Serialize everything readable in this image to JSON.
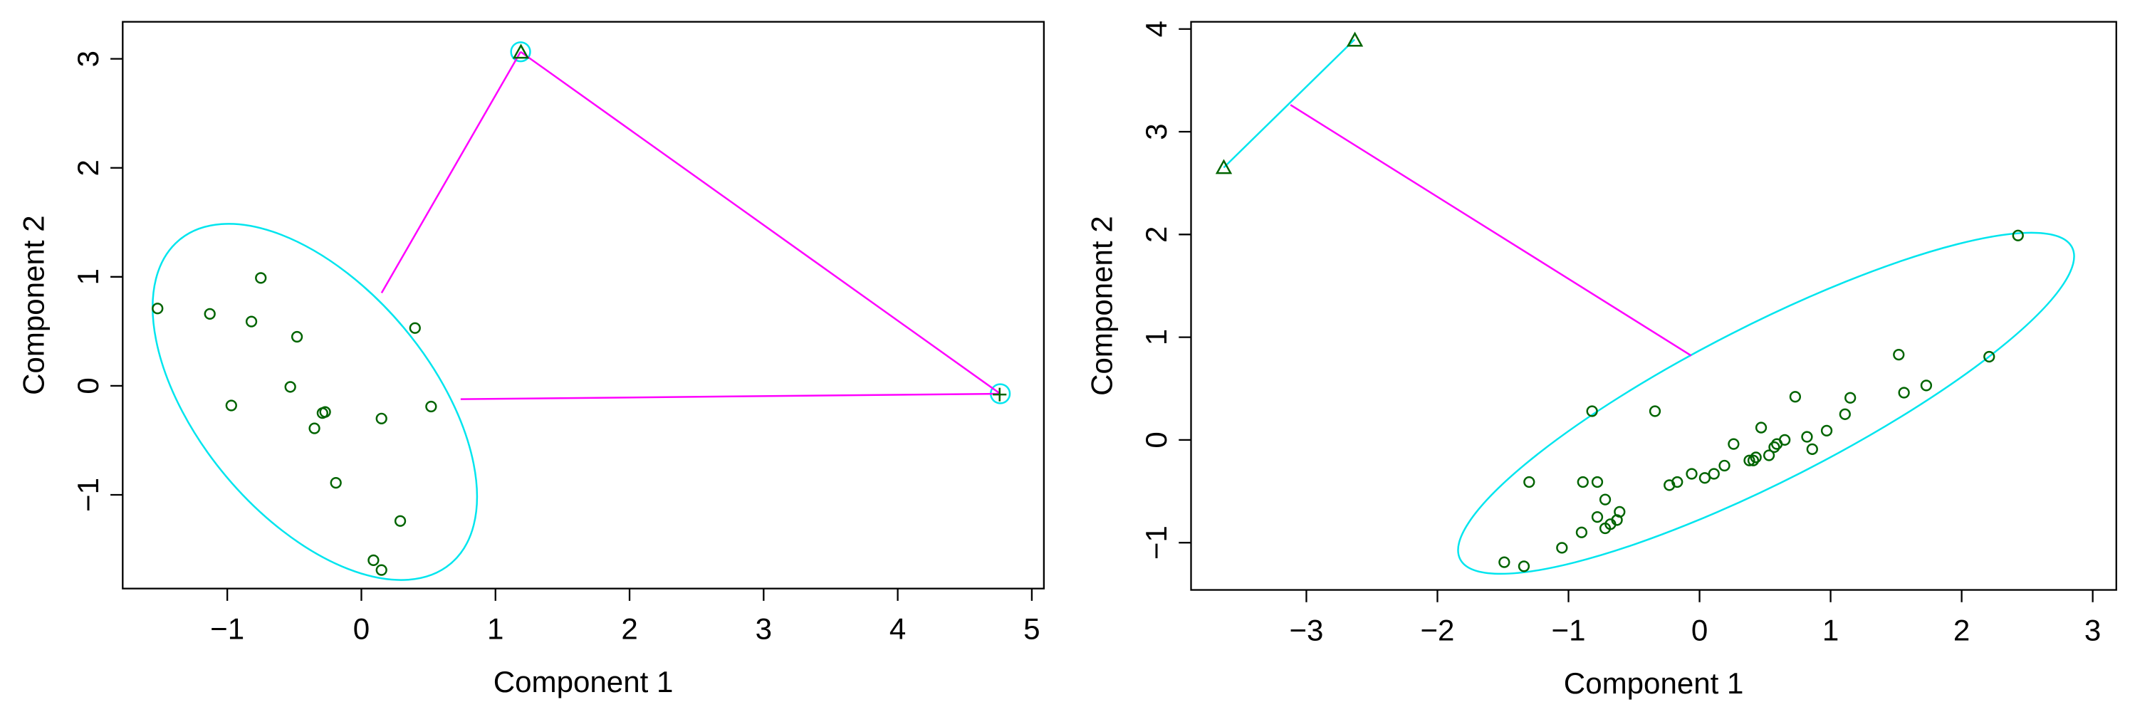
{
  "chart_data": [
    {
      "type": "scatter",
      "xlabel": "Component 1",
      "ylabel": "Component 2",
      "xlim": [
        -1.78,
        5.09
      ],
      "ylim": [
        -1.86,
        3.34
      ],
      "xticks": [
        {
          "value": -1,
          "label": "−1"
        },
        0,
        1,
        2,
        3,
        4,
        5
      ],
      "yticks": [
        {
          "value": -1,
          "label": "−1"
        },
        0,
        1,
        2,
        3
      ],
      "series": [
        {
          "marker": "circle",
          "color": "#006400",
          "x": [
            -1.52,
            -1.13,
            -0.75,
            -0.82,
            -0.48,
            -0.97,
            -0.53,
            -0.27,
            -0.29,
            -0.35,
            0.15,
            0.4,
            0.52,
            -0.19,
            0.29,
            0.09,
            0.15
          ],
          "y": [
            0.71,
            0.66,
            0.99,
            0.59,
            0.45,
            -0.18,
            -0.01,
            -0.24,
            -0.25,
            -0.39,
            -0.3,
            0.53,
            -0.19,
            -0.89,
            -1.24,
            -1.6,
            -1.69
          ]
        },
        {
          "marker": "triangle",
          "color": "#006400",
          "x": [
            1.19
          ],
          "y": [
            3.06
          ]
        },
        {
          "marker": "plus",
          "color": "#006400",
          "x": [
            4.76
          ],
          "y": [
            -0.08
          ]
        }
      ]
    },
    {
      "type": "scatter",
      "xlabel": "Component 1",
      "ylabel": "Component 2",
      "xlim": [
        -3.88,
        3.18
      ],
      "ylim": [
        -1.46,
        4.07
      ],
      "xticks": [
        {
          "value": -3,
          "label": "−3"
        },
        {
          "value": -2,
          "label": "−2"
        },
        {
          "value": -1,
          "label": "−1"
        },
        0,
        1,
        2,
        3
      ],
      "yticks": [
        {
          "value": -1,
          "label": "−1"
        },
        0,
        1,
        2,
        3,
        4
      ],
      "series": [
        {
          "marker": "triangle",
          "color": "#006400",
          "x": [
            -3.63,
            -2.63
          ],
          "y": [
            2.65,
            3.89
          ]
        },
        {
          "marker": "circle",
          "color": "#006400",
          "x": [
            2.43,
            2.21,
            1.52,
            1.73,
            1.56,
            1.15,
            1.11,
            0.73,
            0.82,
            0.97,
            0.86,
            0.47,
            0.59,
            0.57,
            0.65,
            0.53,
            0.41,
            0.38,
            0.43,
            0.26,
            0.19,
            0.11,
            0.04,
            -0.06,
            -0.17,
            -0.23,
            -0.34,
            -0.82,
            -0.89,
            -0.78,
            -1.3,
            -0.72,
            -0.78,
            -0.61,
            -0.63,
            -0.68,
            -0.72,
            -0.9,
            -1.05,
            -1.49,
            -1.34
          ],
          "y": [
            1.99,
            0.81,
            0.83,
            0.53,
            0.46,
            0.41,
            0.25,
            0.42,
            0.03,
            0.09,
            -0.09,
            0.12,
            -0.04,
            -0.07,
            0.0,
            -0.15,
            -0.2,
            -0.2,
            -0.17,
            -0.04,
            -0.25,
            -0.33,
            -0.37,
            -0.33,
            -0.41,
            -0.44,
            0.28,
            0.28,
            -0.41,
            -0.41,
            -0.41,
            -0.58,
            -0.75,
            -0.7,
            -0.78,
            -0.82,
            -0.86,
            -0.9,
            -1.05,
            -1.19,
            -1.23
          ]
        }
      ]
    }
  ]
}
